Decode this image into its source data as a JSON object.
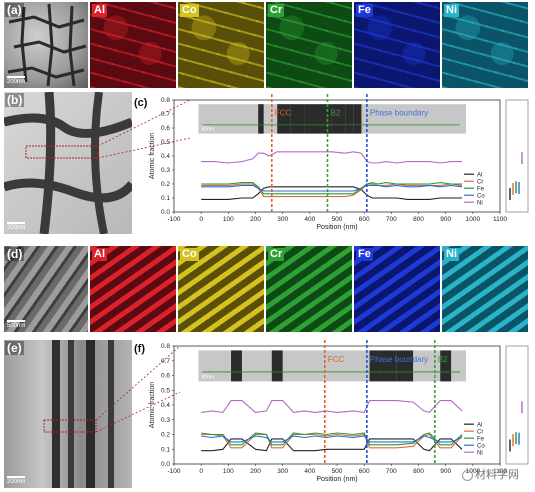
{
  "elements": [
    "Al",
    "Co",
    "Cr",
    "Fe",
    "Ni"
  ],
  "element_colors": {
    "Al": "#d9222a",
    "Co": "#d6c21f",
    "Cr": "#2fa034",
    "Fe": "#1e3ad6",
    "Ni": "#2ab3c9"
  },
  "element_bg": {
    "Al": "#5a0a10",
    "Co": "#5a4f08",
    "Cr": "#0d4a14",
    "Fe": "#0a1670",
    "Ni": "#0b5366"
  },
  "row1": {
    "label": "(a)",
    "scale": "200nm"
  },
  "row2": {
    "image_label": "(b)",
    "image_scale": "200nm",
    "chart_label": "(c)",
    "inset_scale": "80nm",
    "annotations": [
      {
        "text": "FCC",
        "color": "#e0602a"
      },
      {
        "text": "B2",
        "color": "#3aa13a"
      },
      {
        "text": "Phase boundary",
        "color": "#3a72d8"
      }
    ]
  },
  "row3": {
    "label": "(d)",
    "scale": "500nm"
  },
  "row4": {
    "image_label": "(e)",
    "image_scale": "200nm",
    "chart_label": "(f)",
    "inset_scale": "80nm",
    "annotations": [
      {
        "text": "FCC",
        "color": "#e0602a"
      },
      {
        "text": "Phase boundary",
        "color": "#3a72d8"
      },
      {
        "text": "B2",
        "color": "#3aa13a"
      }
    ]
  },
  "legend": [
    "Al",
    "Cr",
    "Fe",
    "Co",
    "Ni"
  ],
  "series_colors": [
    "#222222",
    "#e06a3a",
    "#1f9a3a",
    "#2a6fd0",
    "#b36ac9"
  ],
  "watermark": "材料学网",
  "chart_data": [
    {
      "type": "line",
      "title": "",
      "xlabel": "Position (nm)",
      "ylabel": "Atomic fraction",
      "xlim": [
        -100,
        1100
      ],
      "ylim": [
        0.0,
        0.8
      ],
      "xticks": [
        "-100",
        "0",
        "100",
        "200",
        "300",
        "400",
        "500",
        "600",
        "700",
        "800",
        "900",
        "1000",
        "1100"
      ],
      "yticks": [
        "0.0",
        "0.1",
        "0.2",
        "0.3",
        "0.4",
        "0.5",
        "0.6",
        "0.7",
        "0.8"
      ],
      "vlines": [
        {
          "x": 260,
          "color": "#e0602a"
        },
        {
          "x": 465,
          "color": "#3aa13a"
        },
        {
          "x": 610,
          "color": "#2a4fd0"
        }
      ],
      "x": [
        0,
        50,
        100,
        150,
        190,
        210,
        230,
        250,
        280,
        330,
        380,
        430,
        480,
        530,
        560,
        590,
        610,
        630,
        650,
        680,
        720,
        760,
        800,
        840,
        880,
        920,
        960
      ],
      "series": [
        {
          "name": "Al",
          "values": [
            0.09,
            0.09,
            0.09,
            0.1,
            0.1,
            0.13,
            0.17,
            0.18,
            0.18,
            0.18,
            0.18,
            0.18,
            0.18,
            0.18,
            0.18,
            0.16,
            0.12,
            0.1,
            0.1,
            0.1,
            0.1,
            0.09,
            0.09,
            0.09,
            0.1,
            0.1,
            0.1
          ]
        },
        {
          "name": "Cr",
          "values": [
            0.19,
            0.19,
            0.19,
            0.2,
            0.2,
            0.17,
            0.11,
            0.11,
            0.11,
            0.11,
            0.11,
            0.11,
            0.11,
            0.11,
            0.12,
            0.16,
            0.2,
            0.2,
            0.19,
            0.19,
            0.2,
            0.19,
            0.19,
            0.19,
            0.19,
            0.2,
            0.19
          ]
        },
        {
          "name": "Fe",
          "values": [
            0.2,
            0.2,
            0.2,
            0.21,
            0.21,
            0.18,
            0.13,
            0.13,
            0.13,
            0.13,
            0.13,
            0.13,
            0.13,
            0.13,
            0.13,
            0.17,
            0.2,
            0.21,
            0.2,
            0.21,
            0.2,
            0.2,
            0.2,
            0.2,
            0.21,
            0.2,
            0.2
          ]
        },
        {
          "name": "Co",
          "values": [
            0.18,
            0.18,
            0.18,
            0.19,
            0.19,
            0.17,
            0.15,
            0.15,
            0.15,
            0.15,
            0.15,
            0.15,
            0.15,
            0.15,
            0.15,
            0.17,
            0.19,
            0.19,
            0.19,
            0.18,
            0.19,
            0.18,
            0.18,
            0.19,
            0.18,
            0.19,
            0.18
          ]
        },
        {
          "name": "Ni",
          "values": [
            0.36,
            0.36,
            0.35,
            0.36,
            0.38,
            0.42,
            0.42,
            0.4,
            0.43,
            0.43,
            0.43,
            0.43,
            0.43,
            0.42,
            0.43,
            0.42,
            0.36,
            0.35,
            0.35,
            0.36,
            0.35,
            0.36,
            0.36,
            0.36,
            0.35,
            0.36,
            0.36
          ]
        }
      ]
    },
    {
      "type": "line",
      "title": "",
      "xlabel": "Position (nm)",
      "ylabel": "Atomic fraction",
      "xlim": [
        -100,
        1100
      ],
      "ylim": [
        0.0,
        0.8
      ],
      "xticks": [
        "-100",
        "0",
        "100",
        "200",
        "300",
        "400",
        "500",
        "600",
        "700",
        "800",
        "900",
        "1000",
        "1100"
      ],
      "yticks": [
        "0.0",
        "0.1",
        "0.2",
        "0.3",
        "0.4",
        "0.5",
        "0.6",
        "0.7",
        "0.8"
      ],
      "vlines": [
        {
          "x": 455,
          "color": "#e0602a"
        },
        {
          "x": 610,
          "color": "#2a4fd0"
        },
        {
          "x": 860,
          "color": "#3aa13a"
        }
      ],
      "x": [
        0,
        40,
        80,
        110,
        150,
        200,
        240,
        260,
        300,
        340,
        380,
        420,
        460,
        500,
        560,
        600,
        620,
        660,
        720,
        780,
        820,
        840,
        880,
        920,
        960
      ],
      "series": [
        {
          "name": "Al",
          "values": [
            0.09,
            0.09,
            0.1,
            0.17,
            0.17,
            0.1,
            0.09,
            0.17,
            0.17,
            0.09,
            0.09,
            0.09,
            0.1,
            0.1,
            0.1,
            0.1,
            0.17,
            0.17,
            0.17,
            0.17,
            0.1,
            0.09,
            0.17,
            0.17,
            0.1
          ]
        },
        {
          "name": "Cr",
          "values": [
            0.2,
            0.2,
            0.19,
            0.11,
            0.11,
            0.2,
            0.2,
            0.11,
            0.11,
            0.2,
            0.2,
            0.2,
            0.19,
            0.2,
            0.19,
            0.2,
            0.11,
            0.11,
            0.11,
            0.12,
            0.19,
            0.2,
            0.11,
            0.11,
            0.19
          ]
        },
        {
          "name": "Fe",
          "values": [
            0.21,
            0.2,
            0.2,
            0.13,
            0.13,
            0.21,
            0.2,
            0.13,
            0.13,
            0.21,
            0.2,
            0.21,
            0.2,
            0.21,
            0.2,
            0.21,
            0.13,
            0.13,
            0.13,
            0.14,
            0.2,
            0.21,
            0.13,
            0.13,
            0.2
          ]
        },
        {
          "name": "Co",
          "values": [
            0.19,
            0.18,
            0.19,
            0.15,
            0.15,
            0.19,
            0.18,
            0.15,
            0.15,
            0.19,
            0.18,
            0.19,
            0.18,
            0.19,
            0.18,
            0.19,
            0.15,
            0.15,
            0.15,
            0.15,
            0.19,
            0.18,
            0.15,
            0.15,
            0.18
          ]
        },
        {
          "name": "Ni",
          "values": [
            0.35,
            0.36,
            0.35,
            0.43,
            0.43,
            0.35,
            0.36,
            0.43,
            0.43,
            0.35,
            0.36,
            0.35,
            0.36,
            0.35,
            0.36,
            0.35,
            0.43,
            0.43,
            0.43,
            0.42,
            0.36,
            0.35,
            0.43,
            0.43,
            0.36
          ]
        }
      ]
    }
  ]
}
